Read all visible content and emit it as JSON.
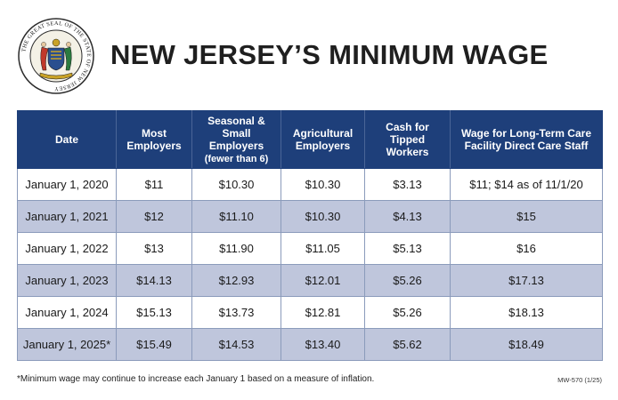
{
  "header": {
    "title": "NEW JERSEY’S MINIMUM WAGE",
    "seal_icon": "nj-state-seal-icon",
    "seal_text": "THE GREAT SEAL OF THE STATE OF NEW JERSEY"
  },
  "table": {
    "columns": [
      {
        "label": "Date",
        "sub": ""
      },
      {
        "label": "Most Employers",
        "sub": ""
      },
      {
        "label": "Seasonal & Small Employers",
        "sub": "(fewer than 6)"
      },
      {
        "label": "Agricultural Employers",
        "sub": ""
      },
      {
        "label": "Cash for Tipped Workers",
        "sub": ""
      },
      {
        "label": "Wage for Long-Term Care Facility Direct Care Staff",
        "sub": ""
      }
    ],
    "rows": [
      [
        "January 1, 2020",
        "$11",
        "$10.30",
        "$10.30",
        "$3.13",
        "$11; $14 as of 11/1/20"
      ],
      [
        "January 1, 2021",
        "$12",
        "$11.10",
        "$10.30",
        "$4.13",
        "$15"
      ],
      [
        "January 1, 2022",
        "$13",
        "$11.90",
        "$11.05",
        "$5.13",
        "$16"
      ],
      [
        "January 1, 2023",
        "$14.13",
        "$12.93",
        "$12.01",
        "$5.26",
        "$17.13"
      ],
      [
        "January 1, 2024",
        "$15.13",
        "$13.73",
        "$12.81",
        "$5.26",
        "$18.13"
      ],
      [
        "January 1, 2025*",
        "$15.49",
        "$14.53",
        "$13.40",
        "$5.62",
        "$18.49"
      ]
    ]
  },
  "footnote": "*Minimum wage may continue to increase each January 1 based on a measure of inflation.",
  "form_code": "MW-570 (1/25)",
  "colors": {
    "header_bg": "#1e3f7a",
    "alt_row_bg": "#bfc6dc",
    "seal_blue": "#2a4f8f",
    "seal_gold": "#c9a227"
  }
}
